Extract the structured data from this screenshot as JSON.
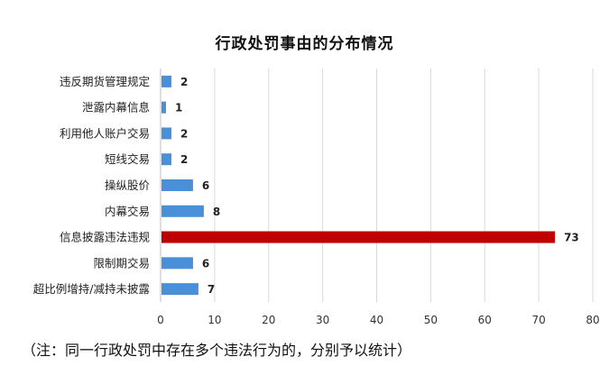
{
  "chart_data": {
    "type": "bar",
    "orientation": "horizontal",
    "title": "行政处罚事由的分布情况",
    "categories": [
      "违反期货管理规定",
      "泄露内幕信息",
      "利用他人账户交易",
      "短线交易",
      "操纵股价",
      "内幕交易",
      "信息披露违法违规",
      "限制期交易",
      "超比例增持/减持未披露"
    ],
    "values": [
      2,
      1,
      2,
      2,
      6,
      8,
      73,
      6,
      7
    ],
    "xlim": [
      0,
      80
    ],
    "xticks": [
      0,
      10,
      20,
      30,
      40,
      50,
      60,
      70,
      80
    ],
    "grid": "vertical",
    "legend": "none",
    "highlight_category": "信息披露违法违规"
  },
  "colors": {
    "bar": "#4a90d9",
    "highlight": "#c00000",
    "grid": "#d9d9d9",
    "axis": "#bfbfbf"
  },
  "note": "（注：同一行政处罚中存在多个违法行为的，分别予以统计）"
}
